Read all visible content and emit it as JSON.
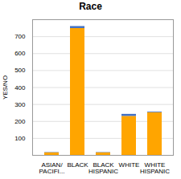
{
  "chart_data": {
    "type": "bar",
    "title": "Race",
    "ylabel": "YES/NO",
    "categories": [
      "ASIAN/\nPACIFI...",
      "BLACK",
      "BLACK\nHISPANIC",
      "WHITE",
      "WHITE\nHISPANIC"
    ],
    "series": [
      {
        "color": "#FFA500",
        "values": [
          15,
          748,
          15,
          230,
          252
        ]
      },
      {
        "color": "#4472C4",
        "values": [
          2,
          12,
          2,
          12,
          4
        ]
      }
    ],
    "stacked": true,
    "ylim": [
      0,
      800
    ],
    "yticks": [
      100,
      200,
      300,
      400,
      500,
      600,
      700
    ],
    "grid": true
  }
}
